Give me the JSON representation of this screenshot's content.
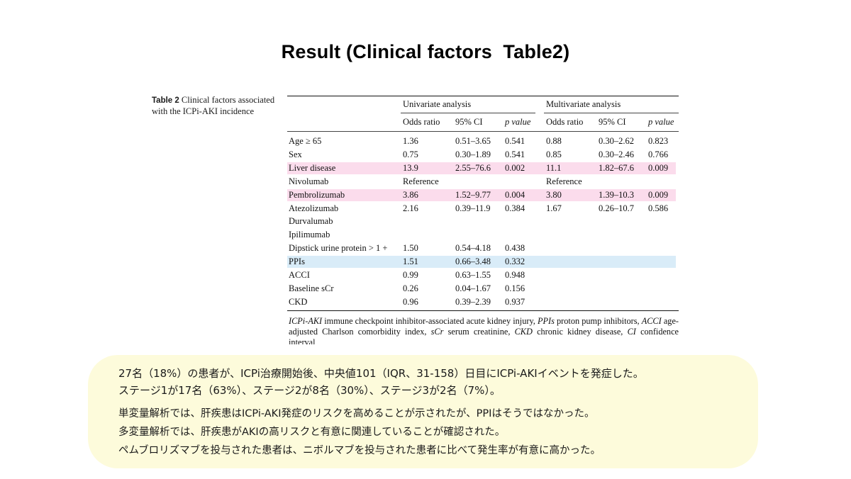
{
  "slide": {
    "title": "Result (Clinical factors  Table2)"
  },
  "caption": {
    "label": "Table 2",
    "text": "Clinical factors associated with the ICPi-AKI incidence"
  },
  "table": {
    "group_univariate": "Univariate analysis",
    "group_multivariate": "Multivariate analysis",
    "columns": {
      "odds_ratio": "Odds ratio",
      "ci": "95% CI",
      "p_value": "p value"
    },
    "rows": [
      {
        "label": "Age ≥ 65",
        "u_or": "1.36",
        "u_ci": "0.51–3.65",
        "u_p": "0.541",
        "m_or": "0.88",
        "m_ci": "0.30–2.62",
        "m_p": "0.823",
        "highlight": ""
      },
      {
        "label": "Sex",
        "u_or": "0.75",
        "u_ci": "0.30–1.89",
        "u_p": "0.541",
        "m_or": "0.85",
        "m_ci": "0.30–2.46",
        "m_p": "0.766",
        "highlight": ""
      },
      {
        "label": "Liver disease",
        "u_or": "13.9",
        "u_ci": "2.55–76.6",
        "u_p": "0.002",
        "m_or": "11.1",
        "m_ci": "1.82–67.6",
        "m_p": "0.009",
        "highlight": "pink"
      },
      {
        "label": "Nivolumab",
        "u_or": "Reference",
        "u_ci": "",
        "u_p": "",
        "m_or": "Reference",
        "m_ci": "",
        "m_p": "",
        "highlight": ""
      },
      {
        "label": "Pembrolizumab",
        "u_or": "3.86",
        "u_ci": "1.52–9.77",
        "u_p": "0.004",
        "m_or": "3.80",
        "m_ci": "1.39–10.3",
        "m_p": "0.009",
        "highlight": "pink"
      },
      {
        "label": "Atezolizumab",
        "u_or": "2.16",
        "u_ci": "0.39–11.9",
        "u_p": "0.384",
        "m_or": "1.67",
        "m_ci": "0.26–10.7",
        "m_p": "0.586",
        "highlight": ""
      },
      {
        "label": "Durvalumab",
        "u_or": "",
        "u_ci": "",
        "u_p": "",
        "m_or": "",
        "m_ci": "",
        "m_p": "",
        "highlight": ""
      },
      {
        "label": "Ipilimumab",
        "u_or": "",
        "u_ci": "",
        "u_p": "",
        "m_or": "",
        "m_ci": "",
        "m_p": "",
        "highlight": ""
      },
      {
        "label": "Dipstick urine protein > 1 +",
        "u_or": "1.50",
        "u_ci": "0.54–4.18",
        "u_p": "0.438",
        "m_or": "",
        "m_ci": "",
        "m_p": "",
        "highlight": ""
      },
      {
        "label": "PPIs",
        "u_or": "1.51",
        "u_ci": "0.66–3.48",
        "u_p": "0.332",
        "m_or": "",
        "m_ci": "",
        "m_p": "",
        "highlight": "blue"
      },
      {
        "label": "ACCI",
        "u_or": "0.99",
        "u_ci": "0.63–1.55",
        "u_p": "0.948",
        "m_or": "",
        "m_ci": "",
        "m_p": "",
        "highlight": ""
      },
      {
        "label": "Baseline sCr",
        "u_or": "0.26",
        "u_ci": "0.04–1.67",
        "u_p": "0.156",
        "m_or": "",
        "m_ci": "",
        "m_p": "",
        "highlight": ""
      },
      {
        "label": "CKD",
        "u_or": "0.96",
        "u_ci": "0.39–2.39",
        "u_p": "0.937",
        "m_or": "",
        "m_ci": "",
        "m_p": "",
        "highlight": ""
      }
    ],
    "footnote_parts": [
      {
        "text": "ICPi-AKI",
        "italic": true
      },
      {
        "text": " immune checkpoint inhibitor-associated acute kidney injury, ",
        "italic": false
      },
      {
        "text": "PPIs",
        "italic": true
      },
      {
        "text": " proton pump inhibitors, ",
        "italic": false
      },
      {
        "text": "ACCI",
        "italic": true
      },
      {
        "text": " age-adjusted Charlson comorbidity index, ",
        "italic": false
      },
      {
        "text": "sCr",
        "italic": true
      },
      {
        "text": " serum creatinine, ",
        "italic": false
      },
      {
        "text": "CKD",
        "italic": true
      },
      {
        "text": " chronic kidney disease, ",
        "italic": false
      },
      {
        "text": "CI",
        "italic": true
      },
      {
        "text": " confidence interval",
        "italic": false
      }
    ]
  },
  "summary": {
    "line1": "27名（18%）の患者が、ICPi治療開始後、中央値101（IQR、31-158）日目にICPi-AKIイベントを発症した。",
    "line2": "ステージ1が17名（63%）、ステージ2が8名（30%）、ステージ3が2名（7%）。",
    "line3": "単変量解析では、肝疾患はICPi-AKI発症のリスクを高めることが示されたが、PPIはそうではなかった。",
    "line4": "多変量解析では、肝疾患がAKIの高リスクと有意に関連していることが確認された。",
    "line5": "ペムブロリズマブを投与された患者は、ニボルマブを投与された患者に比べて発生率が有意に高かった。"
  },
  "colors": {
    "highlight_pink": "#fbdcec",
    "highlight_blue": "#d9ecf8",
    "summary_background": "#fdfbdb"
  }
}
